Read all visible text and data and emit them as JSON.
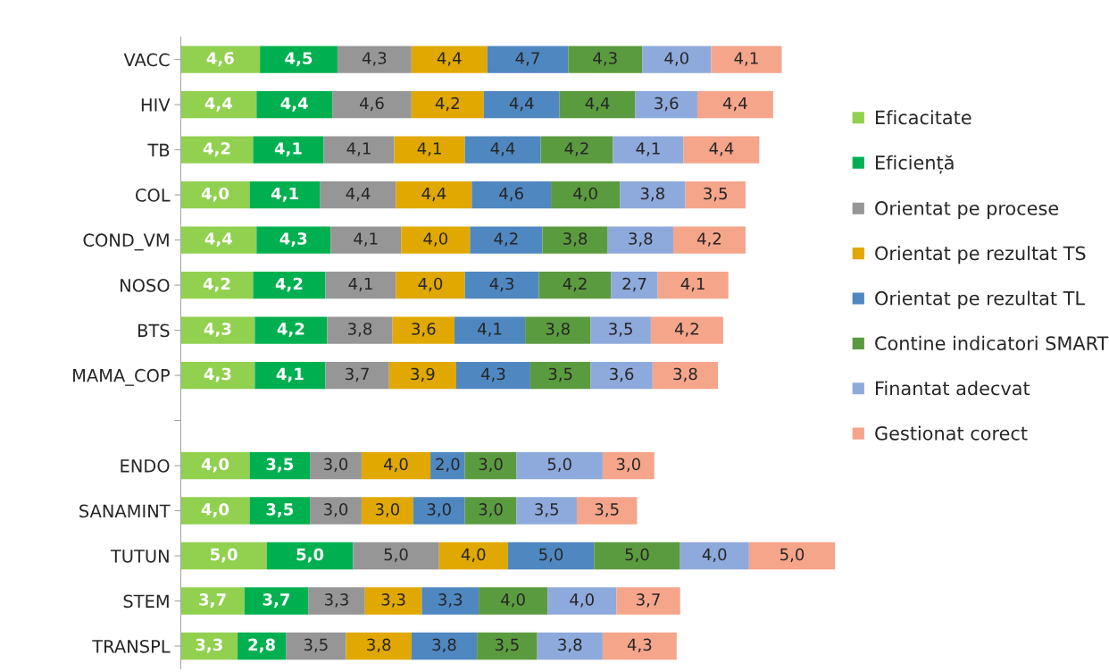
{
  "chart_data": {
    "type": "bar",
    "orientation": "horizontal",
    "stacked": true,
    "legend": "right",
    "grid": false,
    "tick_labels": "y",
    "categories": [
      "VACC",
      "HIV",
      "TB",
      "COL",
      "COND_VM",
      "NOSO",
      "BTS",
      "MAMA_COP",
      null,
      "ENDO",
      "SANAMINT",
      "TUTUN",
      "STEM",
      "TRANSPL"
    ],
    "series": [
      {
        "name": "Eficacitate",
        "color": "#92d050",
        "values": [
          4.6,
          4.4,
          4.2,
          4.0,
          4.4,
          4.2,
          4.3,
          4.3,
          null,
          4.0,
          4.0,
          5.0,
          3.7,
          3.3
        ],
        "value_labels": [
          "4,6",
          "4,4",
          "4,2",
          "4,0",
          "4,4",
          "4,2",
          "4,3",
          "4,3",
          null,
          "4,0",
          "4,0",
          "5,0",
          "3,7",
          "3,3"
        ]
      },
      {
        "name": "Eficiență",
        "color": "#00b050",
        "values": [
          4.5,
          4.4,
          4.1,
          4.1,
          4.3,
          4.2,
          4.2,
          4.1,
          null,
          3.5,
          3.5,
          5.0,
          3.7,
          2.8
        ],
        "value_labels": [
          "4,5",
          "4,4",
          "4,1",
          "4,1",
          "4,3",
          "4,2",
          "4,2",
          "4,1",
          null,
          "3,5",
          "3,5",
          "5,0",
          "3,7",
          "2,8"
        ]
      },
      {
        "name": "Orientat pe procese",
        "color": "#969696",
        "values": [
          4.3,
          4.6,
          4.1,
          4.4,
          4.1,
          4.1,
          3.8,
          3.7,
          null,
          3.0,
          3.0,
          5.0,
          3.3,
          3.5
        ],
        "value_labels": [
          "4,3",
          "4,6",
          "4,1",
          "4,4",
          "4,1",
          "4,1",
          "3,8",
          "3,7",
          null,
          "3,0",
          "3,0",
          "5,0",
          "3,3",
          "3,5"
        ]
      },
      {
        "name": "Orientat pe rezultat TS",
        "color": "#e0a800",
        "values": [
          4.4,
          4.2,
          4.1,
          4.4,
          4.0,
          4.0,
          3.6,
          3.9,
          null,
          4.0,
          3.0,
          4.0,
          3.3,
          3.8
        ],
        "value_labels": [
          "4,4",
          "4,2",
          "4,1",
          "4,4",
          "4,0",
          "4,0",
          "3,6",
          "3,9",
          null,
          "4,0",
          "3,0",
          "4,0",
          "3,3",
          "3,8"
        ]
      },
      {
        "name": "Orientat pe rezultat TL",
        "color": "#4f87c0",
        "values": [
          4.7,
          4.4,
          4.4,
          4.6,
          4.2,
          4.3,
          4.1,
          4.3,
          null,
          2.0,
          3.0,
          5.0,
          3.3,
          3.8
        ],
        "value_labels": [
          "4,7",
          "4,4",
          "4,4",
          "4,6",
          "4,2",
          "4,3",
          "4,1",
          "4,3",
          null,
          "2,0",
          "3,0",
          "5,0",
          "3,3",
          "3,8"
        ]
      },
      {
        "name": "Contine indicatori SMART",
        "color": "#5b9b3f",
        "values": [
          4.3,
          4.4,
          4.2,
          4.0,
          3.8,
          4.2,
          3.8,
          3.5,
          null,
          3.0,
          3.0,
          5.0,
          4.0,
          3.5
        ],
        "value_labels": [
          "4,3",
          "4,4",
          "4,2",
          "4,0",
          "3,8",
          "4,2",
          "3,8",
          "3,5",
          null,
          "3,0",
          "3,0",
          "5,0",
          "4,0",
          "3,5"
        ]
      },
      {
        "name": "Finantat adecvat",
        "color": "#8ea9db",
        "values": [
          4.0,
          3.6,
          4.1,
          3.8,
          3.8,
          2.7,
          3.5,
          3.6,
          null,
          5.0,
          3.5,
          4.0,
          4.0,
          3.8
        ],
        "value_labels": [
          "4,0",
          "3,6",
          "4,1",
          "3,8",
          "3,8",
          "2,7",
          "3,5",
          "3,6",
          null,
          "5,0",
          "3,5",
          "4,0",
          "4,0",
          "3,8"
        ]
      },
      {
        "name": "Gestionat corect",
        "color": "#f4a58a",
        "values": [
          4.1,
          4.4,
          4.4,
          3.5,
          4.2,
          4.1,
          4.2,
          3.8,
          null,
          3.0,
          3.5,
          5.0,
          3.7,
          4.3
        ],
        "value_labels": [
          "4,1",
          "4,4",
          "4,4",
          "3,5",
          "4,2",
          "4,1",
          "4,2",
          "3,8",
          null,
          "3,0",
          "3,5",
          "5,0",
          "3,7",
          "4,3"
        ]
      }
    ]
  }
}
